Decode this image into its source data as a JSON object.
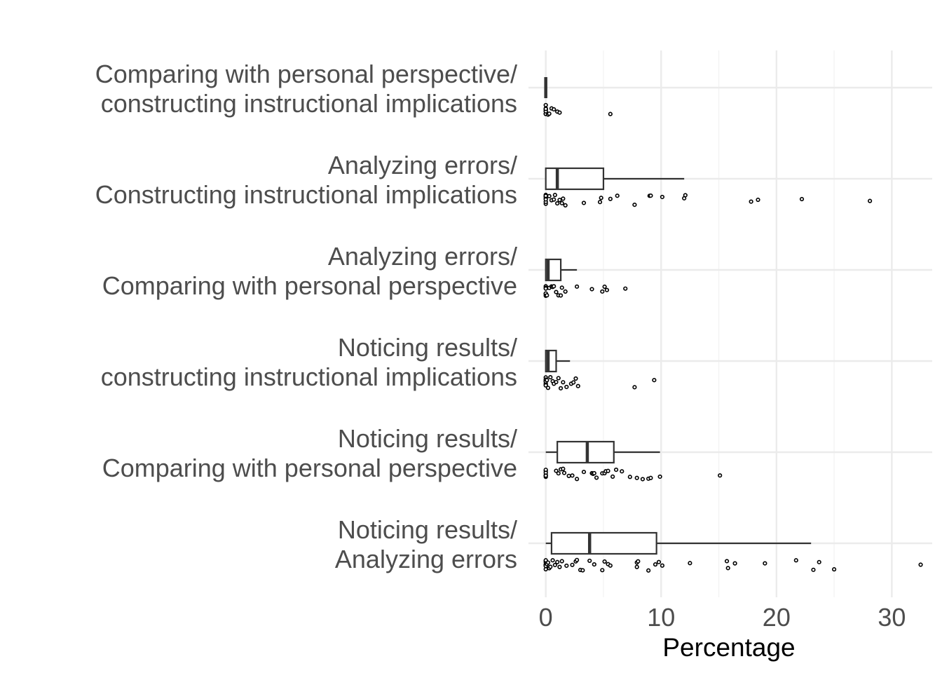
{
  "chart_data": {
    "type": "boxplot",
    "orientation": "horizontal",
    "title": "",
    "xlabel": "Percentage",
    "ylabel": "",
    "xlim": [
      -1.5,
      33.5
    ],
    "x_ticks": [
      0,
      10,
      20,
      30
    ],
    "grid": true,
    "legend": "none",
    "categories": [
      {
        "label_lines": [
          "Noticing results/",
          "Analyzing errors"
        ],
        "box": {
          "min": 0,
          "q1": 0.5,
          "median": 3.8,
          "q3": 9.6,
          "max": 23.0
        },
        "points": [
          0,
          0,
          0,
          0,
          0,
          0,
          0,
          0,
          0,
          0.1,
          0.2,
          0.3,
          0.4,
          0.6,
          0.8,
          1.0,
          1.2,
          1.4,
          1.8,
          2.3,
          2.6,
          2.7,
          3.0,
          3.2,
          3.8,
          4.2,
          4.9,
          5.1,
          5.4,
          5.6,
          7.9,
          7.9,
          8.0,
          8.9,
          9.5,
          9.8,
          10.1,
          12.5,
          15.7,
          15.8,
          16.4,
          19.0,
          21.7,
          23.2,
          23.7,
          25.0,
          32.5
        ]
      },
      {
        "label_lines": [
          "Noticing results/",
          "Comparing with personal perspective"
        ],
        "box": {
          "min": 0,
          "q1": 1.0,
          "median": 3.6,
          "q3": 5.9,
          "max": 9.9
        },
        "points": [
          0,
          0,
          0,
          0,
          0,
          0,
          0.9,
          1.1,
          1.3,
          1.5,
          1.6,
          2.0,
          2.3,
          2.7,
          3.3,
          4.0,
          4.1,
          4.2,
          4.4,
          4.9,
          5.1,
          5.2,
          5.4,
          5.8,
          6.1,
          6.6,
          7.3,
          7.9,
          8.4,
          8.9,
          9.1,
          9.9,
          15.1
        ]
      },
      {
        "label_lines": [
          "Noticing results/",
          "constructing instructional implications"
        ],
        "box": {
          "min": 0,
          "q1": 0,
          "median": 0.2,
          "q3": 0.9,
          "max": 2.1
        },
        "points": [
          0,
          0,
          0,
          0,
          0,
          0,
          0,
          0,
          0.1,
          0.2,
          0.4,
          0.6,
          0.7,
          0.9,
          1.1,
          1.3,
          1.5,
          1.8,
          2.2,
          2.4,
          2.6,
          2.8,
          7.7,
          9.4
        ]
      },
      {
        "label_lines": [
          "Analyzing errors/",
          "Comparing with personal perspective"
        ],
        "box": {
          "min": 0,
          "q1": 0,
          "median": 0.2,
          "q3": 1.3,
          "max": 2.7
        },
        "points": [
          0,
          0,
          0,
          0,
          0,
          0,
          0,
          0.1,
          0.3,
          0.5,
          0.6,
          0.7,
          0.9,
          1.1,
          1.3,
          1.4,
          1.7,
          2.7,
          4.0,
          4.9,
          5.1,
          5.3,
          6.9
        ]
      },
      {
        "label_lines": [
          "Analyzing errors/",
          "Constructing instructional implications"
        ],
        "box": {
          "min": 0,
          "q1": 0,
          "median": 1.0,
          "q3": 5.0,
          "max": 12.0
        },
        "points": [
          0,
          0,
          0,
          0,
          0,
          0,
          0,
          0,
          0.3,
          0.5,
          0.7,
          0.8,
          1.0,
          1.2,
          1.4,
          1.5,
          1.7,
          3.3,
          4.7,
          4.8,
          5.6,
          6.2,
          7.7,
          9.0,
          9.1,
          10.1,
          12.0,
          12.1,
          17.8,
          18.4,
          22.2,
          28.1
        ]
      },
      {
        "label_lines": [
          "Comparing with personal perspective/",
          "constructing instructional implications"
        ],
        "box": {
          "min": 0,
          "q1": 0,
          "median": 0,
          "q3": 0,
          "max": 0
        },
        "points": [
          0,
          0,
          0,
          0,
          0,
          0,
          0,
          0,
          0,
          0,
          0.2,
          0.3,
          0.5,
          0.7,
          1.0,
          1.2,
          5.6
        ]
      }
    ]
  }
}
